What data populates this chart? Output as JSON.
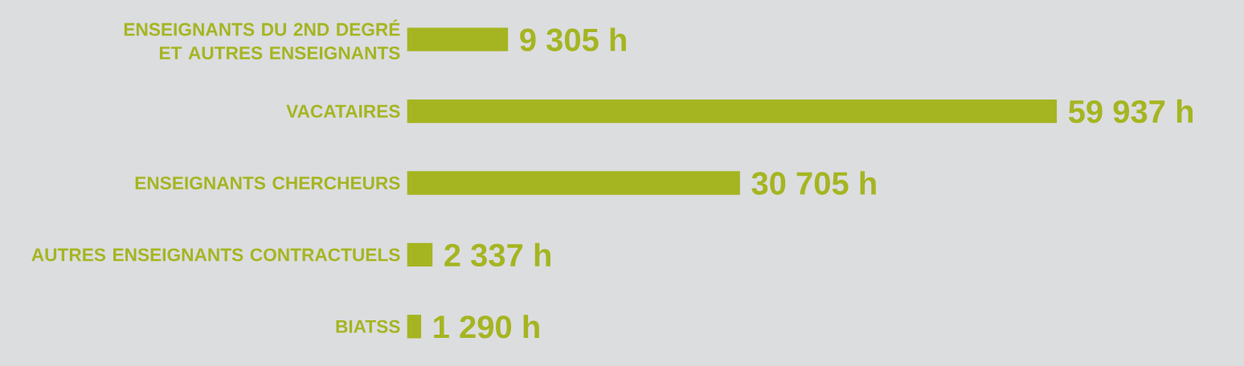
{
  "chart_data": {
    "type": "bar",
    "orientation": "horizontal",
    "color": "#a5b521",
    "categories": [
      "ENSEIGNANTS DU 2ND DEGRÉ ET AUTRES ENSEIGNANTS",
      "VACATAIRES",
      "ENSEIGNANTS CHERCHEURS",
      "AUTRES ENSEIGNANTS CONTRACTUELS",
      "BIATSS"
    ],
    "values": [
      9305,
      59937,
      30705,
      2337,
      1290
    ],
    "value_labels": [
      "9 305 h",
      "59 937 h",
      "30 705 h",
      "2 337 h",
      "1 290 h"
    ]
  }
}
